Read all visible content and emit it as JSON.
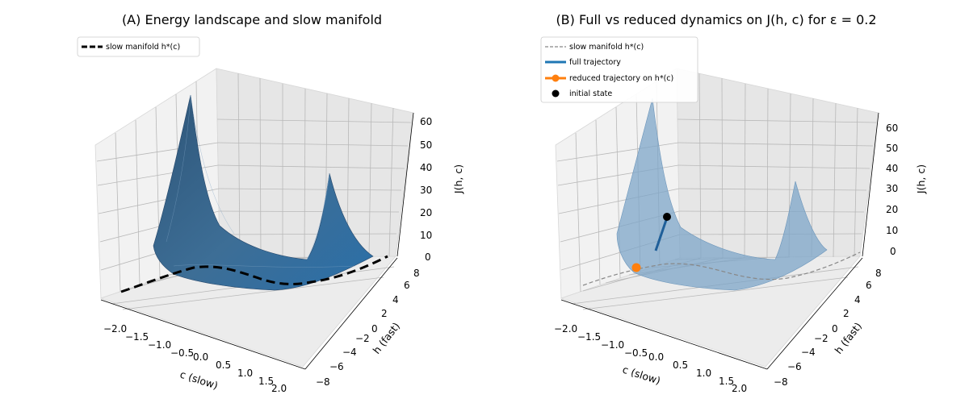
{
  "chart_data": [
    {
      "type": "surface3d",
      "title": "(A) Energy landscape and slow manifold",
      "xlabel": "c (slow)",
      "ylabel": "h (fast)",
      "zlabel": "J(h, c)",
      "xlim": [
        -2,
        2
      ],
      "ylim": [
        -8,
        8
      ],
      "zlim": [
        0,
        60
      ],
      "xticks": [
        "−2.0",
        "−1.5",
        "−1.0",
        "−0.5",
        "0.0",
        "0.5",
        "1.0",
        "1.5",
        "2.0"
      ],
      "yticks": [
        "−8",
        "−6",
        "−4",
        "−2",
        "0",
        "2",
        "4",
        "6",
        "8"
      ],
      "zticks": [
        "0",
        "10",
        "20",
        "30",
        "40",
        "50",
        "60"
      ],
      "surface_color": "#2a6fa8",
      "legend": [
        {
          "label": "slow manifold h*(c)",
          "style": "thick dashed black"
        }
      ],
      "series": [
        {
          "name": "slow manifold h*(c)",
          "c": [
            -2.0,
            -1.5,
            -1.0,
            -0.5,
            0.0,
            0.5,
            1.0,
            1.5,
            2.0
          ],
          "h": [
            -6.0,
            -1.0,
            0.5,
            0.0,
            -2.0,
            -3.5,
            -2.5,
            1.0,
            6.5
          ],
          "J": [
            0,
            0,
            0,
            0,
            0,
            0,
            0,
            0,
            0
          ]
        }
      ]
    },
    {
      "type": "surface3d",
      "title": "(B) Full vs reduced dynamics on J(h, c) for ε = 0.2",
      "xlabel": "c (slow)",
      "ylabel": "h (fast)",
      "zlabel": "J(h, c)",
      "xlim": [
        -2,
        2
      ],
      "ylim": [
        -8,
        8
      ],
      "zlim": [
        0,
        60
      ],
      "xticks": [
        "−2.0",
        "−1.5",
        "−1.0",
        "−0.5",
        "0.0",
        "0.5",
        "1.0",
        "1.5",
        "2.0"
      ],
      "yticks": [
        "−8",
        "−6",
        "−4",
        "−2",
        "0",
        "2",
        "4",
        "6",
        "8"
      ],
      "zticks": [
        "0",
        "10",
        "20",
        "30",
        "40",
        "50",
        "60"
      ],
      "surface_color": "#8fb3cf",
      "legend": [
        {
          "label": "slow manifold h*(c)",
          "style": "thin dashed grey"
        },
        {
          "label": "full trajectory",
          "style": "solid blue"
        },
        {
          "label": "reduced trajectory on h*(c)",
          "style": "orange line with dot"
        },
        {
          "label": "initial state",
          "style": "black dot"
        }
      ],
      "series": [
        {
          "name": "full trajectory",
          "c": [
            -1.1,
            -1.2
          ],
          "h": [
            -2.0,
            -2.0
          ],
          "J": [
            17,
            2
          ]
        },
        {
          "name": "reduced trajectory on h*(c)",
          "c": [
            -1.5
          ],
          "h": [
            -3.5
          ],
          "J": [
            0
          ]
        },
        {
          "name": "initial state",
          "c": [
            -1.1
          ],
          "h": [
            -2.0
          ],
          "J": [
            17
          ]
        }
      ]
    }
  ],
  "colors": {
    "surface_a": "#2a6fa8",
    "surface_b": "#8fb3cf",
    "full_trajectory": "#1f77b4",
    "reduced_trajectory": "#ff7f0e",
    "initial_state": "#000000",
    "slow_manifold_b": "#888888"
  }
}
